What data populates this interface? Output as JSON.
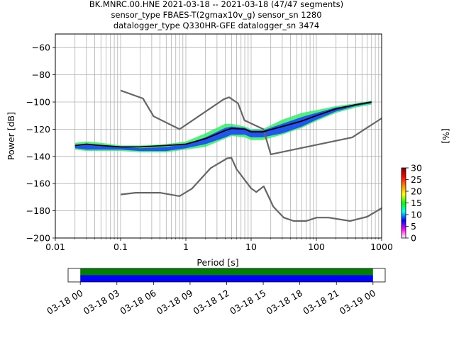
{
  "chart_data": [
    {
      "type": "heatmap",
      "title_lines": [
        "BK.MNRC.00.HNE   2021-03-18 -- 2021-03-18  (47/47 segments)",
        "sensor_type FBAES-T(2gmax10v_g) sensor_sn 1280",
        "datalogger_type Q330HR-GFE datalogger_sn 3474"
      ],
      "xlabel": "Period [s]",
      "ylabel": "Power [dB]",
      "xscale": "log",
      "xlim": [
        0.01,
        1000
      ],
      "ylim": [
        -200,
        -50
      ],
      "x_ticks": [
        {
          "v": 0.01,
          "label": "0.01"
        },
        {
          "v": 0.1,
          "label": "0.1"
        },
        {
          "v": 1,
          "label": "1"
        },
        {
          "v": 10,
          "label": "10"
        },
        {
          "v": 100,
          "label": "100"
        },
        {
          "v": 1000,
          "label": "1000"
        }
      ],
      "y_ticks": [
        {
          "v": -60,
          "label": "−60"
        },
        {
          "v": -80,
          "label": "−80"
        },
        {
          "v": -100,
          "label": "−100"
        },
        {
          "v": -120,
          "label": "−120"
        },
        {
          "v": -140,
          "label": "−140"
        },
        {
          "v": -160,
          "label": "−160"
        },
        {
          "v": -180,
          "label": "−180"
        },
        {
          "v": -200,
          "label": "−200"
        }
      ],
      "grid": true,
      "series": [
        {
          "role": "noise-model-high",
          "color": "#666666",
          "x": [
            0.1,
            0.22,
            0.32,
            0.8,
            3.8,
            4.6,
            6.3,
            7.9,
            15.4,
            20,
            354.8,
            1000
          ],
          "y": [
            -91.5,
            -97.4,
            -110.5,
            -120,
            -98.0,
            -96.5,
            -101.0,
            -113.5,
            -120,
            -138.5,
            -126,
            -112
          ]
        },
        {
          "role": "noise-model-low",
          "color": "#666666",
          "x": [
            0.1,
            0.17,
            0.4,
            0.8,
            1.24,
            2.4,
            4.3,
            5.0,
            6.0,
            10.0,
            12.0,
            15.6,
            21.9,
            31.6,
            45.0,
            70.0,
            101.0,
            154.0,
            328.0,
            600.0,
            1000.0
          ],
          "y": [
            -168,
            -166.7,
            -166.7,
            -169.2,
            -163.7,
            -148.6,
            -141.4,
            -141.1,
            -149.5,
            -163.5,
            -166.2,
            -162.0,
            -177.0,
            -185.0,
            -187.5,
            -187.5,
            -185.0,
            -185.0,
            -187.5,
            -184.4,
            -178.0
          ]
        },
        {
          "role": "mode",
          "color": "#000000",
          "x": [
            0.02,
            0.03,
            0.05,
            0.1,
            0.2,
            0.5,
            1,
            2,
            4,
            5,
            8,
            10,
            15,
            30,
            60,
            100,
            200,
            400,
            700
          ],
          "y": [
            -132,
            -131,
            -132,
            -133,
            -133,
            -132,
            -131,
            -127,
            -121,
            -119.5,
            -120,
            -122,
            -122,
            -118,
            -114,
            -110,
            -105,
            -102,
            -100
          ]
        }
      ],
      "histogram_hint": {
        "note_bands": [
          {
            "x": [
              0.02,
              0.03,
              0.05,
              0.1,
              0.2,
              0.5,
              1,
              2,
              4,
              5,
              8,
              10,
              15,
              30,
              60,
              100,
              200,
              400,
              700
            ],
            "y_low": [
              -135,
              -136,
              -136,
              -136,
              -137,
              -137,
              -135,
              -133,
              -127,
              -125,
              -126,
              -128,
              -128,
              -124,
              -119,
              -114,
              -108,
              -104,
              -102
            ],
            "y_high": [
              -130,
              -129,
              -130,
              -132,
              -132,
              -131,
              -129,
              -123,
              -116,
              -116,
              -118,
              -120,
              -120,
              -113,
              -108,
              -106,
              -103,
              -101,
              -99
            ],
            "color": "#33ee66"
          },
          {
            "x": [
              0.02,
              0.03,
              0.05,
              0.1,
              0.2,
              0.5,
              1,
              2,
              4,
              5,
              8,
              10,
              15,
              30,
              60,
              100,
              200,
              400,
              700
            ],
            "y_low": [
              -134,
              -135,
              -135,
              -135,
              -136,
              -136,
              -134,
              -131,
              -126,
              -124,
              -124,
              -126,
              -126,
              -123,
              -118,
              -113,
              -107,
              -103,
              -101
            ],
            "y_high": [
              -132,
              -131,
              -132,
              -133,
              -134,
              -133,
              -131,
              -126,
              -119,
              -118,
              -119,
              -121,
              -121,
              -116,
              -111,
              -108,
              -104,
              -102,
              -100
            ],
            "color": "#1a3cff"
          }
        ]
      }
    },
    {
      "type": "colorbar",
      "label": "[%]",
      "range": [
        0,
        30
      ],
      "ticks": [
        {
          "v": 0,
          "label": "0"
        },
        {
          "v": 5,
          "label": "5"
        },
        {
          "v": 10,
          "label": "10"
        },
        {
          "v": 15,
          "label": "15"
        },
        {
          "v": 20,
          "label": "20"
        },
        {
          "v": 25,
          "label": "25"
        },
        {
          "v": 30,
          "label": "30"
        }
      ],
      "colors": [
        "#ffffff",
        "#ff00ff",
        "#0000ff",
        "#00ffff",
        "#00ff00",
        "#ffff00",
        "#ff8000",
        "#ff0000",
        "#800000"
      ]
    },
    {
      "type": "timeline",
      "range_hours": [
        -1,
        25
      ],
      "data_span_hours": [
        0,
        24
      ],
      "tick_labels": [
        {
          "v": 0,
          "label": "03-18 00"
        },
        {
          "v": 3,
          "label": "03-18 03"
        },
        {
          "v": 6,
          "label": "03-18 06"
        },
        {
          "v": 9,
          "label": "03-18 09"
        },
        {
          "v": 12,
          "label": "03-18 12"
        },
        {
          "v": 15,
          "label": "03-18 15"
        },
        {
          "v": 18,
          "label": "03-18 18"
        },
        {
          "v": 21,
          "label": "03-18 21"
        },
        {
          "v": 24,
          "label": "03-19 00"
        }
      ],
      "bars": [
        {
          "role": "data",
          "color": "#008000"
        },
        {
          "role": "used",
          "color": "#0000ff"
        }
      ]
    }
  ]
}
